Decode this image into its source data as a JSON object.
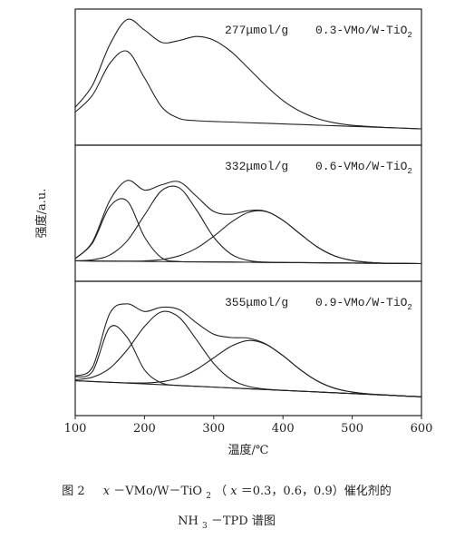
{
  "chart_data": [
    {
      "type": "line",
      "annotation": {
        "amount": "277μmol/g",
        "sample": "0.3-VMo/W-TiO",
        "sample_sub": "2"
      },
      "x": [
        100,
        125,
        150,
        175,
        200,
        225,
        250,
        275,
        300,
        325,
        350,
        375,
        400,
        425,
        450,
        475,
        500,
        525,
        550,
        575,
        600
      ],
      "xlim": [
        100,
        600
      ],
      "ylim": [
        0,
        1
      ],
      "series": [
        {
          "color": "#222222",
          "values": [
            0.278,
            0.441,
            0.739,
            0.923,
            0.846,
            0.755,
            0.769,
            0.799,
            0.772,
            0.688,
            0.566,
            0.439,
            0.328,
            0.248,
            0.195,
            0.164,
            0.146,
            0.137,
            0.13,
            0.125,
            0.12
          ]
        },
        {
          "color": "#222222",
          "values": [
            0.243,
            0.368,
            0.601,
            0.69,
            0.495,
            0.281,
            0.197,
            0.18,
            0.174,
            0.17,
            0.165,
            0.161,
            0.156,
            0.152,
            0.147,
            0.143,
            0.138,
            0.134,
            0.129,
            0.125,
            0.12
          ]
        }
      ]
    },
    {
      "type": "line",
      "annotation": {
        "amount": "332μmol/g",
        "sample": "0.6-VMo/W-TiO",
        "sample_sub": "2"
      },
      "ylabel": "强度/a.u.",
      "x": [
        100,
        125,
        150,
        175,
        200,
        225,
        250,
        275,
        300,
        325,
        350,
        375,
        400,
        425,
        450,
        475,
        500,
        525,
        550,
        575,
        600
      ],
      "xlim": [
        100,
        600
      ],
      "ylim": [
        0,
        1
      ],
      "series": [
        {
          "color": "#222222",
          "values": [
            0.167,
            0.291,
            0.594,
            0.741,
            0.67,
            0.709,
            0.731,
            0.625,
            0.513,
            0.492,
            0.519,
            0.515,
            0.448,
            0.347,
            0.251,
            0.186,
            0.153,
            0.139,
            0.133,
            0.131,
            0.13
          ]
        },
        {
          "color": "#222222",
          "values": [
            0.166,
            0.282,
            0.549,
            0.59,
            0.326,
            0.172,
            0.145,
            0.143,
            0.142,
            0.141,
            0.14,
            0.139,
            0.138,
            0.137,
            0.136,
            0.135,
            0.134,
            0.133,
            0.132,
            0.131,
            0.13
          ]
        },
        {
          "color": "#222222",
          "values": [
            0.151,
            0.158,
            0.193,
            0.297,
            0.486,
            0.667,
            0.687,
            0.525,
            0.324,
            0.2,
            0.153,
            0.141,
            0.138,
            0.137,
            0.136,
            0.135,
            0.134,
            0.133,
            0.132,
            0.131,
            0.13
          ]
        },
        {
          "color": "#222222",
          "values": [
            0.15,
            0.149,
            0.148,
            0.148,
            0.15,
            0.16,
            0.187,
            0.243,
            0.331,
            0.433,
            0.506,
            0.513,
            0.448,
            0.347,
            0.251,
            0.186,
            0.153,
            0.139,
            0.133,
            0.131,
            0.13
          ]
        },
        {
          "color": "#222222",
          "values": [
            0.15,
            0.149,
            0.148,
            0.147,
            0.146,
            0.145,
            0.144,
            0.143,
            0.142,
            0.141,
            0.14,
            0.139,
            0.138,
            0.137,
            0.136,
            0.135,
            0.134,
            0.133,
            0.132,
            0.131,
            0.13
          ]
        }
      ]
    },
    {
      "type": "line",
      "annotation": {
        "amount": "355μmol/g",
        "sample": "0.9-VMo/W-TiO",
        "sample_sub": "2"
      },
      "xlabel": "温度/℃",
      "x": [
        100,
        125,
        150,
        175,
        200,
        225,
        250,
        275,
        300,
        325,
        350,
        375,
        400,
        425,
        450,
        475,
        500,
        525,
        550,
        575,
        600
      ],
      "xlim": [
        100,
        600
      ],
      "ylim": [
        0,
        1
      ],
      "xticks": [
        100,
        200,
        300,
        400,
        500,
        600
      ],
      "series": [
        {
          "color": "#222222",
          "values": [
            0.296,
            0.361,
            0.762,
            0.832,
            0.775,
            0.807,
            0.79,
            0.691,
            0.606,
            0.581,
            0.577,
            0.534,
            0.446,
            0.342,
            0.257,
            0.203,
            0.175,
            0.161,
            0.153,
            0.146,
            0.14
          ]
        },
        {
          "color": "#222222",
          "values": [
            0.289,
            0.329,
            0.657,
            0.583,
            0.341,
            0.242,
            0.224,
            0.218,
            0.212,
            0.206,
            0.2,
            0.194,
            0.188,
            0.182,
            0.176,
            0.17,
            0.164,
            0.158,
            0.152,
            0.146,
            0.14
          ]
        },
        {
          "color": "#222222",
          "values": [
            0.267,
            0.286,
            0.353,
            0.489,
            0.663,
            0.773,
            0.732,
            0.566,
            0.388,
            0.271,
            0.218,
            0.197,
            0.188,
            0.182,
            0.176,
            0.17,
            0.164,
            0.158,
            0.152,
            0.146,
            0.14
          ]
        },
        {
          "color": "#222222",
          "values": [
            0.26,
            0.254,
            0.248,
            0.244,
            0.243,
            0.252,
            0.282,
            0.343,
            0.43,
            0.516,
            0.559,
            0.531,
            0.446,
            0.342,
            0.257,
            0.203,
            0.175,
            0.161,
            0.153,
            0.146,
            0.14
          ]
        },
        {
          "color": "#222222",
          "values": [
            0.26,
            0.254,
            0.248,
            0.242,
            0.236,
            0.23,
            0.224,
            0.218,
            0.212,
            0.206,
            0.2,
            0.194,
            0.188,
            0.182,
            0.176,
            0.17,
            0.164,
            0.158,
            0.152,
            0.146,
            0.14
          ]
        }
      ]
    }
  ],
  "caption": {
    "line1": [
      "图 2",
      "x",
      "－VMo/W－TiO",
      "2",
      "（",
      "x",
      "＝0.3，0.6，0.9）催化剂的"
    ],
    "line2": [
      "NH",
      "3",
      "－TPD 谱图"
    ]
  }
}
